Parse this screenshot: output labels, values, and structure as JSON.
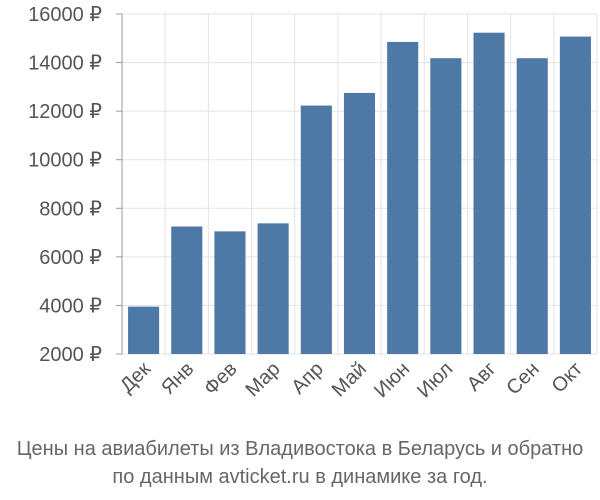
{
  "chart_data": {
    "type": "bar",
    "categories": [
      "Дек",
      "Янв",
      "Фев",
      "Мар",
      "Апр",
      "Май",
      "Июн",
      "Июл",
      "Авг",
      "Сен",
      "Окт"
    ],
    "values": [
      3950,
      7250,
      7050,
      7380,
      12230,
      12750,
      14850,
      14180,
      15230,
      14180,
      15070
    ],
    "y_ticks": [
      2000,
      4000,
      6000,
      8000,
      10000,
      12000,
      14000,
      16000
    ],
    "y_tick_labels": [
      "2000 ₽",
      "4000 ₽",
      "6000 ₽",
      "8000 ₽",
      "10000 ₽",
      "12000 ₽",
      "14000 ₽",
      "16000 ₽"
    ],
    "ylim": [
      2000,
      16000
    ],
    "grid": true,
    "bar_color": "#4e79a7",
    "caption": [
      "Цены на авиабилеты из Владивостока в Беларусь и обратно",
      "по данным avticket.ru в динамике за год."
    ]
  }
}
